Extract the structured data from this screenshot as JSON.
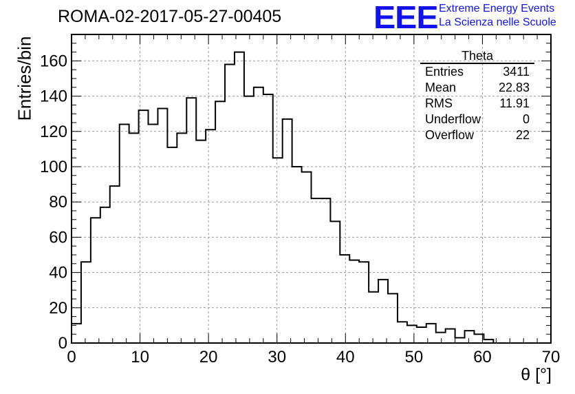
{
  "title": "ROMA-02-2017-05-27-00405",
  "logo": {
    "text": "EEE",
    "line1": "Extreme Energy Events",
    "line2": "La Scienza nelle Scuole",
    "color": "#1212ee"
  },
  "stats": {
    "name": "Theta",
    "rows": [
      {
        "label": "Entries",
        "value": "3411"
      },
      {
        "label": "Mean",
        "value": "22.83"
      },
      {
        "label": "RMS",
        "value": "11.91"
      },
      {
        "label": "Underflow",
        "value": "0"
      },
      {
        "label": "Overflow",
        "value": "22"
      }
    ]
  },
  "chart_data": {
    "type": "histogram",
    "title": "ROMA-02-2017-05-27-00405",
    "xlabel": "θ [°]",
    "ylabel": "Entries/bin",
    "xlim": [
      0,
      70
    ],
    "ylim": [
      0,
      175
    ],
    "grid": true,
    "bin_width": 1.4,
    "bin_edges_start": 0,
    "x_ticks": [
      0,
      10,
      20,
      30,
      40,
      50,
      60,
      70
    ],
    "y_ticks": [
      0,
      20,
      40,
      60,
      80,
      100,
      120,
      140,
      160
    ],
    "values": [
      11,
      46,
      71,
      77,
      89,
      124,
      119,
      132,
      124,
      133,
      111,
      119,
      139,
      115,
      121,
      137,
      158,
      165,
      140,
      145,
      141,
      105,
      127,
      100,
      97,
      82,
      82,
      69,
      50,
      47,
      46,
      29,
      36,
      28,
      12,
      10,
      9,
      11,
      6,
      8,
      3,
      7,
      5,
      2,
      0,
      0,
      0,
      0,
      0,
      0
    ],
    "line_color": "#000000"
  }
}
